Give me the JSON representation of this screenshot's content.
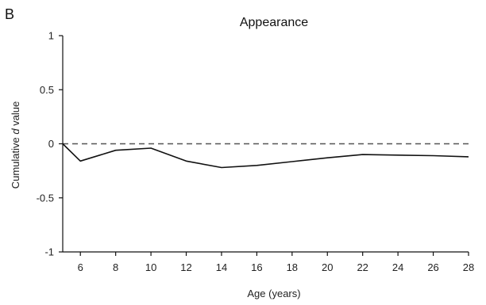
{
  "panel_label": "B",
  "chart_data": {
    "type": "line",
    "title": "Appearance",
    "xlabel": "Age (years)",
    "ylabel_prefix": "Cumulative ",
    "ylabel_italic": "d",
    "ylabel_suffix": " value",
    "xlim": [
      5,
      28
    ],
    "ylim": [
      -1,
      1
    ],
    "xticks": [
      6,
      8,
      10,
      12,
      14,
      16,
      18,
      20,
      22,
      24,
      26,
      28
    ],
    "yticks": [
      1,
      0.5,
      0,
      -0.5,
      -1
    ],
    "ytick_labels": [
      "1",
      "0.5",
      "0",
      "-0.5",
      "-1"
    ],
    "reference_line": {
      "y": 0,
      "style": "dashed",
      "color": "#555555"
    },
    "series": [
      {
        "color": "#111111",
        "x": [
          5,
          6,
          8,
          10,
          12,
          14,
          16,
          18,
          20,
          22,
          24,
          26,
          28
        ],
        "y": [
          0.0,
          -0.16,
          -0.06,
          -0.04,
          -0.16,
          -0.22,
          -0.2,
          -0.165,
          -0.13,
          -0.1,
          -0.105,
          -0.11,
          -0.12
        ]
      }
    ]
  }
}
